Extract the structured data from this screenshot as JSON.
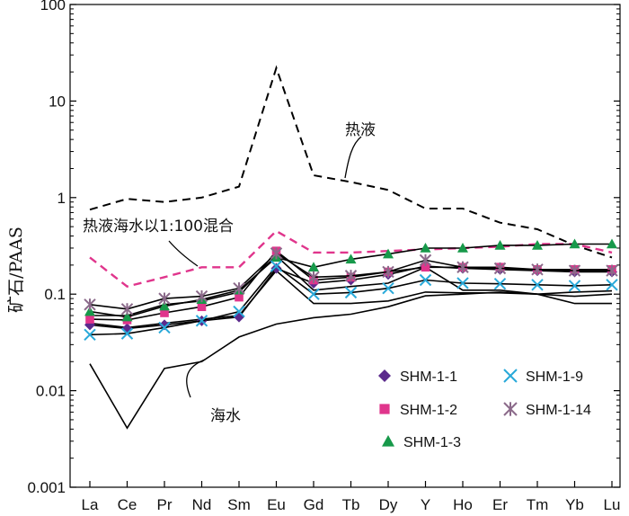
{
  "chart_data": {
    "type": "line",
    "yscale": "log",
    "ylim": [
      0.001,
      100
    ],
    "ylabel": "矿石/PAAS",
    "y_tick_labels": [
      "0.001",
      "0.01",
      "0.1",
      "1",
      "10",
      "100"
    ],
    "y_tick_values": [
      0.001,
      0.01,
      0.1,
      1,
      10,
      100
    ],
    "categories": [
      "La",
      "Ce",
      "Pr",
      "Nd",
      "Sm",
      "Eu",
      "Gd",
      "Tb",
      "Dy",
      "Y",
      "Ho",
      "Er",
      "Tm",
      "Yb",
      "Lu"
    ],
    "colors": {
      "SHM-1-1": "#5b2a8c",
      "SHM-1-2": "#e0358c",
      "SHM-1-3": "#17994a",
      "SHM-1-9": "#29a9d9",
      "SHM-1-14": "#8b6a8a",
      "mix": "#e0358c",
      "reference": "#000000"
    },
    "series": [
      {
        "name": "SHM-1-1",
        "marker": "diamond",
        "values": [
          0.048,
          0.044,
          0.048,
          0.053,
          0.058,
          0.185,
          0.13,
          0.14,
          0.16,
          0.195,
          0.185,
          0.18,
          0.175,
          0.17,
          0.17
        ]
      },
      {
        "name": "SHM-1-2",
        "marker": "square",
        "values": [
          0.055,
          0.054,
          0.064,
          0.074,
          0.093,
          0.28,
          0.14,
          0.15,
          0.17,
          0.19,
          0.19,
          0.19,
          0.18,
          0.18,
          0.18
        ]
      },
      {
        "name": "SHM-1-3",
        "marker": "triangle",
        "values": [
          0.066,
          0.058,
          0.075,
          0.088,
          0.11,
          0.24,
          0.19,
          0.23,
          0.26,
          0.3,
          0.3,
          0.32,
          0.32,
          0.33,
          0.33
        ]
      },
      {
        "name": "SHM-1-9",
        "marker": "x",
        "values": [
          0.038,
          0.039,
          0.045,
          0.053,
          0.066,
          0.195,
          0.1,
          0.104,
          0.115,
          0.14,
          0.13,
          0.128,
          0.125,
          0.122,
          0.125
        ]
      },
      {
        "name": "SHM-1-14",
        "marker": "asterisk",
        "values": [
          0.078,
          0.07,
          0.09,
          0.095,
          0.115,
          0.265,
          0.15,
          0.155,
          0.17,
          0.225,
          0.19,
          0.185,
          0.18,
          0.175,
          0.175
        ]
      }
    ],
    "extra_lines": [
      {
        "values": [
          0.05,
          0.045,
          0.05,
          0.055,
          0.06,
          0.175,
          0.08,
          0.08,
          0.085,
          0.105,
          0.103,
          0.103,
          0.1,
          0.095,
          0.1
        ]
      },
      {
        "values": [
          0.06,
          0.06,
          0.078,
          0.085,
          0.105,
          0.25,
          0.11,
          0.12,
          0.13,
          0.19,
          0.11,
          0.11,
          0.1,
          0.08,
          0.08
        ]
      }
    ],
    "reference_lines": [
      {
        "name": "热液",
        "style": "dashed",
        "values": [
          0.75,
          0.97,
          0.9,
          1.0,
          1.3,
          22,
          1.7,
          1.45,
          1.2,
          0.77,
          0.77,
          0.55,
          0.47,
          0.32,
          0.24
        ]
      },
      {
        "name": "热液海水以1:100混合",
        "style": "dashed-colored",
        "values": [
          0.24,
          0.12,
          0.15,
          0.19,
          0.19,
          0.45,
          0.27,
          0.27,
          0.28,
          0.29,
          0.3,
          0.31,
          0.33,
          0.33,
          0.27
        ]
      },
      {
        "name": "海水",
        "style": "solid",
        "values": [
          0.019,
          0.0041,
          0.017,
          0.02,
          0.036,
          0.049,
          0.057,
          0.062,
          0.074,
          0.096,
          0.1,
          0.105,
          0.1,
          0.105,
          0.108
        ]
      }
    ],
    "annotations": [
      {
        "text": "热液",
        "target": "热液"
      },
      {
        "text": "热液海水以1:100混合",
        "target": "热液海水以1:100混合"
      },
      {
        "text": "海水",
        "target": "海水"
      }
    ],
    "legend": {
      "placement": "bottom-right",
      "entries": [
        "SHM-1-1",
        "SHM-1-9",
        "SHM-1-2",
        "SHM-1-14",
        "SHM-1-3"
      ]
    }
  }
}
